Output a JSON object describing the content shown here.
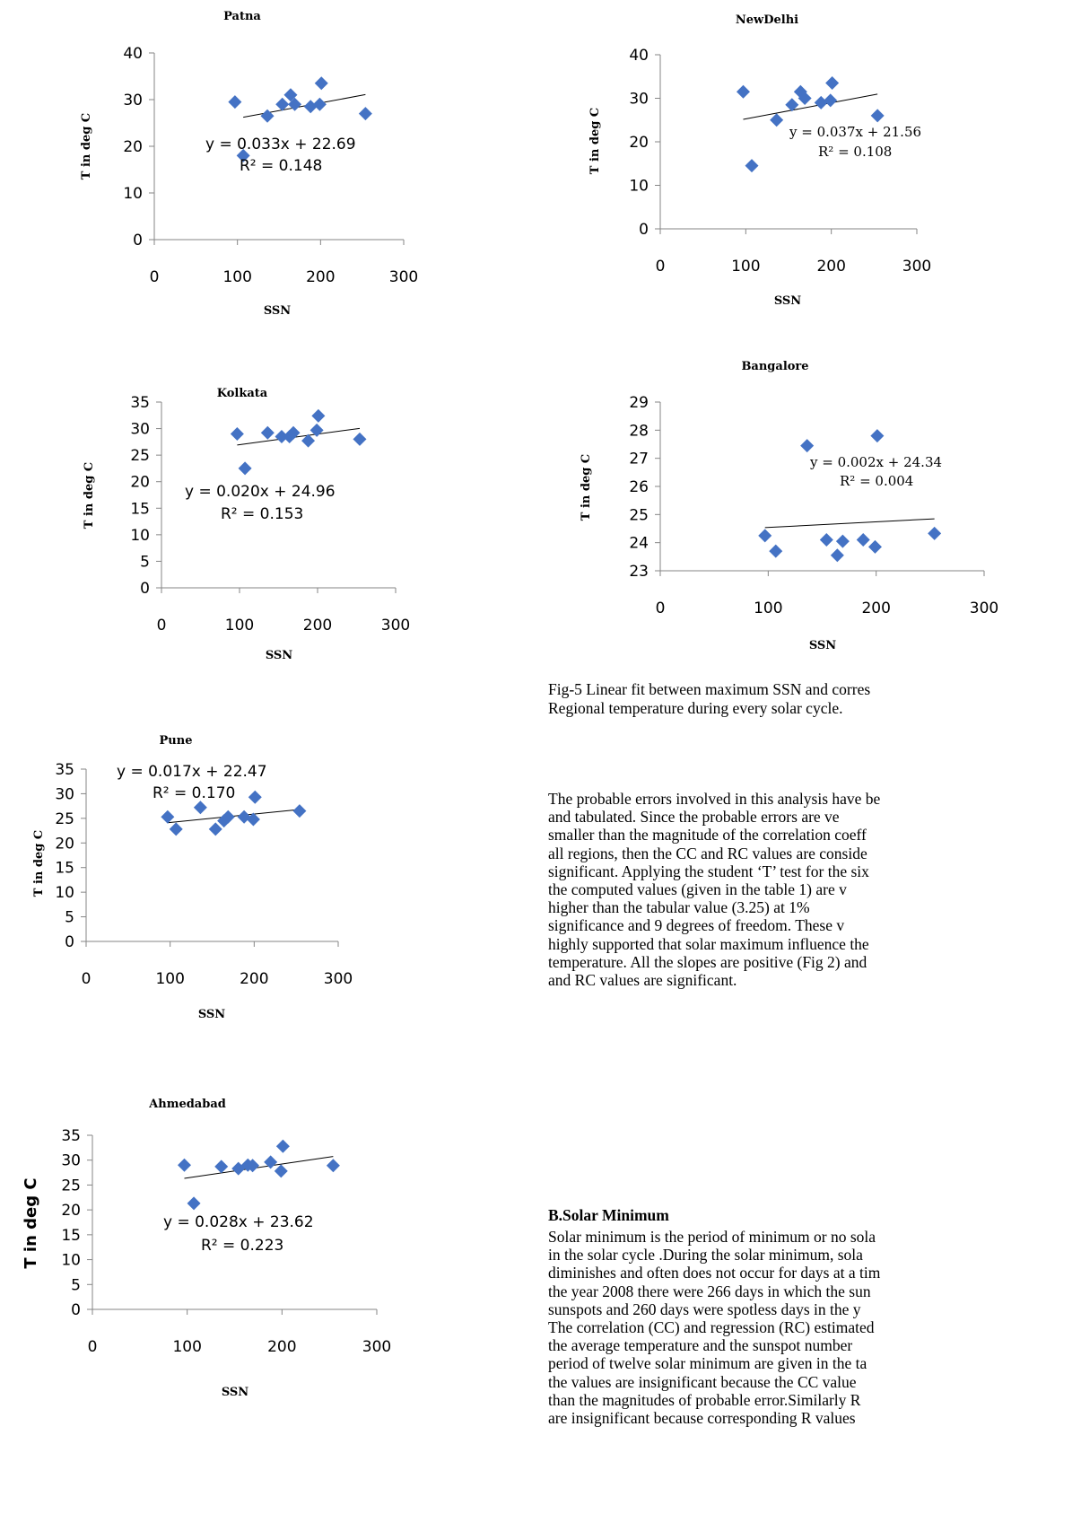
{
  "chart_data": [
    {
      "type": "scatter",
      "title": "Patna",
      "xlabel": "SSN",
      "ylabel": "T in deg C",
      "xlim": [
        0,
        300
      ],
      "ylim": [
        0,
        40
      ],
      "xticks": [
        "0",
        "100",
        "200",
        "300"
      ],
      "yticks": [
        "0",
        "10",
        "20",
        "30",
        "40"
      ],
      "x": [
        97,
        107,
        136,
        154,
        164,
        169,
        188,
        199,
        201,
        254
      ],
      "y": [
        29.5,
        18,
        26.5,
        29,
        31,
        29,
        28.5,
        29,
        33.5,
        27
      ],
      "trendline": {
        "slope": 0.033,
        "intercept": 22.69,
        "x_range": [
          107,
          254
        ]
      },
      "equation": "y = 0.033x + 22.69",
      "r2": "R² = 0.148",
      "marker_color": "#4472c4"
    },
    {
      "type": "scatter",
      "title": "NewDelhi",
      "xlabel": "SSN",
      "ylabel": "T in deg C",
      "xlim": [
        0,
        300
      ],
      "ylim": [
        0,
        40
      ],
      "xticks": [
        "0",
        "100",
        "200",
        "300"
      ],
      "yticks": [
        "0",
        "10",
        "20",
        "30",
        "40"
      ],
      "x": [
        97,
        107,
        136,
        154,
        164,
        169,
        188,
        199,
        201,
        254
      ],
      "y": [
        31.5,
        14.5,
        25,
        28.5,
        31.5,
        30,
        29,
        29.5,
        33.5,
        26
      ],
      "trendline": {
        "slope": 0.037,
        "intercept": 21.56,
        "x_range": [
          97,
          254
        ]
      },
      "equation": "y = 0.037x + 21.56",
      "r2": "R² = 0.108",
      "marker_color": "#4472c4"
    },
    {
      "type": "scatter",
      "title": "Kolkata",
      "xlabel": "SSN",
      "ylabel": "T in deg C",
      "xlim": [
        0,
        300
      ],
      "ylim": [
        0,
        35
      ],
      "xticks": [
        "0",
        "100",
        "200",
        "300"
      ],
      "yticks": [
        "0",
        "5",
        "10",
        "15",
        "20",
        "25",
        "30",
        "35"
      ],
      "x": [
        97,
        107,
        136,
        154,
        164,
        169,
        188,
        199,
        201,
        254
      ],
      "y": [
        29,
        22.5,
        29.2,
        28.5,
        28.5,
        29.2,
        27.7,
        29.7,
        32.4,
        28
      ],
      "trendline": {
        "slope": 0.02,
        "intercept": 24.96,
        "x_range": [
          97,
          254
        ]
      },
      "equation": "y = 0.020x + 24.96",
      "r2": "R² = 0.153",
      "marker_color": "#4472c4"
    },
    {
      "type": "scatter",
      "title": "Bangalore",
      "xlabel": "SSN",
      "ylabel": "T in deg C",
      "xlim": [
        0,
        300
      ],
      "ylim": [
        23,
        29
      ],
      "xticks": [
        "0",
        "100",
        "200",
        "300"
      ],
      "yticks": [
        "23",
        "24",
        "25",
        "26",
        "27",
        "28",
        "29"
      ],
      "x": [
        97,
        107,
        136,
        154,
        164,
        169,
        188,
        199,
        201,
        254
      ],
      "y": [
        24.25,
        23.7,
        27.45,
        24.1,
        23.55,
        24.05,
        24.1,
        23.85,
        27.8,
        24.33
      ],
      "trendline": {
        "slope": 0.002,
        "intercept": 24.34,
        "x_range": [
          97,
          254
        ]
      },
      "equation": "y = 0.002x + 24.34",
      "r2": "R² = 0.004",
      "marker_color": "#4472c4"
    },
    {
      "type": "scatter",
      "title": "Pune",
      "xlabel": "SSN",
      "ylabel": "T in deg C",
      "xlim": [
        0,
        300
      ],
      "ylim": [
        0,
        35
      ],
      "xticks": [
        "0",
        "100",
        "200",
        "300"
      ],
      "yticks": [
        "0",
        "5",
        "10",
        "15",
        "20",
        "25",
        "30",
        "35"
      ],
      "x": [
        97,
        107,
        136,
        154,
        164,
        169,
        188,
        199,
        201,
        254
      ],
      "y": [
        25.3,
        22.8,
        27.2,
        22.8,
        24.5,
        25.3,
        25.3,
        24.8,
        29.3,
        26.5
      ],
      "trendline": {
        "slope": 0.017,
        "intercept": 22.47,
        "x_range": [
          97,
          254
        ]
      },
      "equation": "y = 0.017x + 22.47",
      "r2": "R² = 0.170",
      "marker_color": "#4472c4"
    },
    {
      "type": "scatter",
      "title": "Ahmedabad",
      "xlabel": "SSN",
      "ylabel": "T in deg C",
      "xlim": [
        0,
        300
      ],
      "ylim": [
        0,
        35
      ],
      "xticks": [
        "0",
        "100",
        "200",
        "300"
      ],
      "yticks": [
        "0",
        "5",
        "10",
        "15",
        "20",
        "25",
        "30",
        "35"
      ],
      "x": [
        97,
        107,
        136,
        154,
        164,
        169,
        188,
        199,
        201,
        254
      ],
      "y": [
        29,
        21.3,
        28.7,
        28.3,
        29,
        28.9,
        29.6,
        27.8,
        32.8,
        28.9
      ],
      "trendline": {
        "slope": 0.028,
        "intercept": 23.62,
        "x_range": [
          97,
          254
        ]
      },
      "equation": "y = 0.028x + 23.62",
      "r2": "R² = 0.223",
      "marker_color": "#4472c4"
    }
  ],
  "caption": [
    "Fig-5 Linear fit between maximum SSN and corres",
    "Regional temperature during every solar cycle."
  ],
  "paragraph1": [
    "The probable errors involved in this analysis have be",
    "and  tabulated.  Since  the  probable  errors  are  ve",
    "smaller than the magnitude of the correlation coeff",
    "all regions, then the CC and RC values are conside",
    "significant. Applying the student ‘T’ test for the six",
    "the computed values (given in the table 1) are v",
    "higher  than  the  tabular  value  (3.25)  at  1%",
    "significance and 9 degrees of freedom. These v",
    "highly supported that solar maximum influence the",
    "temperature. All the slopes are positive (Fig 2) and",
    "and RC values are significant."
  ],
  "heading": "B.Solar Minimum",
  "paragraph2": [
    "Solar minimum is the period of minimum or no sola",
    "in the solar cycle .During the solar minimum, sola",
    "diminishes and often does not occur for days at a tim",
    "the year 2008 there were 266 days in which the sun",
    "sunspots and 260 days were spotless days in the y",
    "The correlation (CC) and regression (RC) estimated",
    "the average temperature and the sunspot number",
    "period of twelve solar minimum are given in the ta",
    "the values are insignificant because the CC value",
    "than the magnitudes of probable error.Similarly R",
    "are  insignificant  because  corresponding  R  values"
  ]
}
